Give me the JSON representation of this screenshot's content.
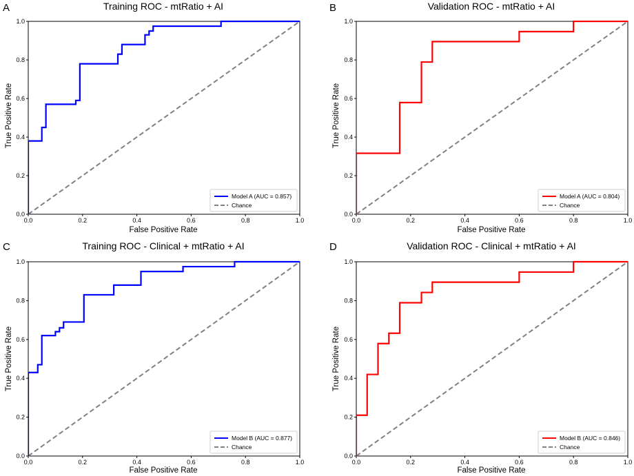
{
  "chart_data": [
    {
      "panel": "A",
      "type": "line",
      "title": "Training ROC - mtRatio + AI",
      "xlabel": "False Positive Rate",
      "ylabel": "True Positive Rate",
      "xlim": [
        0,
        1
      ],
      "ylim": [
        0,
        1
      ],
      "xticks": [
        "0.0",
        "0.2",
        "0.4",
        "0.6",
        "0.8",
        "1.0"
      ],
      "yticks": [
        "0.0",
        "0.2",
        "0.4",
        "0.6",
        "0.8",
        "1.0"
      ],
      "legend_position": "lower-right",
      "series": [
        {
          "name": "Model A (AUC = 0.857)",
          "color": "#0000ff",
          "style": "solid",
          "x": [
            0,
            0,
            0.05,
            0.05,
            0.065,
            0.065,
            0.175,
            0.175,
            0.19,
            0.19,
            0.33,
            0.33,
            0.345,
            0.345,
            0.43,
            0.43,
            0.445,
            0.445,
            0.46,
            0.46,
            0.71,
            0.71,
            1.0
          ],
          "y": [
            0,
            0.38,
            0.38,
            0.45,
            0.45,
            0.57,
            0.57,
            0.59,
            0.59,
            0.78,
            0.78,
            0.83,
            0.83,
            0.88,
            0.88,
            0.93,
            0.93,
            0.95,
            0.95,
            0.975,
            0.975,
            1.0,
            1.0
          ]
        },
        {
          "name": "Chance",
          "color": "#808080",
          "style": "dashed",
          "x": [
            0,
            1
          ],
          "y": [
            0,
            1
          ]
        }
      ]
    },
    {
      "panel": "B",
      "type": "line",
      "title": "Validation ROC - mtRatio + AI",
      "xlabel": "False Positive Rate",
      "ylabel": "True Positive Rate",
      "xlim": [
        0,
        1
      ],
      "ylim": [
        0,
        1
      ],
      "xticks": [
        "0.0",
        "0.2",
        "0.4",
        "0.6",
        "0.8",
        "1.0"
      ],
      "yticks": [
        "0.0",
        "0.2",
        "0.4",
        "0.6",
        "0.8",
        "1.0"
      ],
      "legend_position": "lower-right",
      "series": [
        {
          "name": "Model A (AUC = 0.804)",
          "color": "#ff0000",
          "style": "solid",
          "x": [
            0,
            0,
            0.16,
            0.16,
            0.24,
            0.24,
            0.28,
            0.28,
            0.6,
            0.6,
            0.8,
            0.8,
            1.0
          ],
          "y": [
            0,
            0.316,
            0.316,
            0.579,
            0.579,
            0.789,
            0.789,
            0.895,
            0.895,
            0.947,
            0.947,
            1.0,
            1.0
          ]
        },
        {
          "name": "Chance",
          "color": "#808080",
          "style": "dashed",
          "x": [
            0,
            1
          ],
          "y": [
            0,
            1
          ]
        }
      ]
    },
    {
      "panel": "C",
      "type": "line",
      "title": "Training ROC - Clinical + mtRatio + AI",
      "xlabel": "False Positive Rate",
      "ylabel": "True Positive Rate",
      "xlim": [
        0,
        1
      ],
      "ylim": [
        0,
        1
      ],
      "xticks": [
        "0.0",
        "0.2",
        "0.4",
        "0.6",
        "0.8",
        "1.0"
      ],
      "yticks": [
        "0.0",
        "0.2",
        "0.4",
        "0.6",
        "0.8",
        "1.0"
      ],
      "legend_position": "lower-right",
      "series": [
        {
          "name": "Model B (AUC = 0.877)",
          "color": "#0000ff",
          "style": "solid",
          "x": [
            0,
            0,
            0.035,
            0.035,
            0.05,
            0.05,
            0.1,
            0.1,
            0.115,
            0.115,
            0.13,
            0.13,
            0.205,
            0.205,
            0.315,
            0.315,
            0.415,
            0.415,
            0.57,
            0.57,
            0.76,
            0.76,
            1.0
          ],
          "y": [
            0,
            0.43,
            0.43,
            0.47,
            0.47,
            0.62,
            0.62,
            0.64,
            0.64,
            0.66,
            0.66,
            0.69,
            0.69,
            0.83,
            0.83,
            0.88,
            0.88,
            0.95,
            0.95,
            0.975,
            0.975,
            1.0,
            1.0
          ]
        },
        {
          "name": "Chance",
          "color": "#808080",
          "style": "dashed",
          "x": [
            0,
            1
          ],
          "y": [
            0,
            1
          ]
        }
      ]
    },
    {
      "panel": "D",
      "type": "line",
      "title": "Validation ROC - Clinical + mtRatio + AI",
      "xlabel": "False Positive Rate",
      "ylabel": "True Positive Rate",
      "xlim": [
        0,
        1
      ],
      "ylim": [
        0,
        1
      ],
      "xticks": [
        "0.0",
        "0.2",
        "0.4",
        "0.6",
        "0.8",
        "1.0"
      ],
      "yticks": [
        "0.0",
        "0.2",
        "0.4",
        "0.6",
        "0.8",
        "1.0"
      ],
      "legend_position": "lower-right",
      "series": [
        {
          "name": "Model B (AUC = 0.846)",
          "color": "#ff0000",
          "style": "solid",
          "x": [
            0,
            0,
            0.04,
            0.04,
            0.08,
            0.08,
            0.12,
            0.12,
            0.16,
            0.16,
            0.24,
            0.24,
            0.28,
            0.28,
            0.6,
            0.6,
            0.8,
            0.8,
            1.0
          ],
          "y": [
            0,
            0.21,
            0.21,
            0.42,
            0.42,
            0.579,
            0.579,
            0.632,
            0.632,
            0.789,
            0.789,
            0.842,
            0.842,
            0.895,
            0.895,
            0.947,
            0.947,
            1.0,
            1.0
          ]
        },
        {
          "name": "Chance",
          "color": "#808080",
          "style": "dashed",
          "x": [
            0,
            1
          ],
          "y": [
            0,
            1
          ]
        }
      ]
    }
  ]
}
